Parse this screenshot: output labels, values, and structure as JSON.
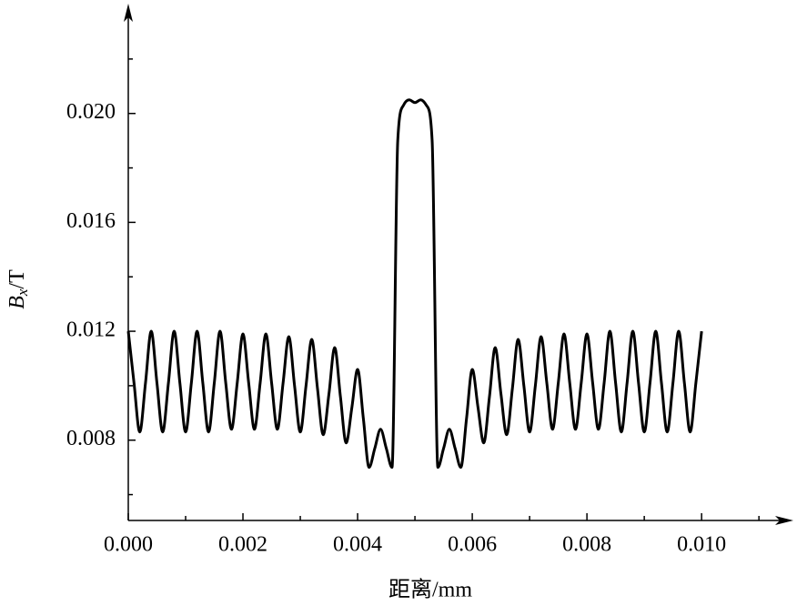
{
  "chart_data": {
    "type": "line",
    "x_label": "距离/mm",
    "y_label": {
      "symbol": "B",
      "subscript": "x",
      "unit": "/T"
    },
    "x": [
      0,
      0.0001,
      0.0002,
      0.0003,
      0.0004,
      0.0005,
      0.0006,
      0.0007,
      0.0008,
      0.0009,
      0.001,
      0.0011,
      0.0012,
      0.0013,
      0.0014,
      0.0015,
      0.0016,
      0.0017,
      0.0018,
      0.0019,
      0.002,
      0.0021,
      0.0022,
      0.0023,
      0.0024,
      0.0025,
      0.0026,
      0.0027,
      0.0028,
      0.0029,
      0.003,
      0.0031,
      0.0032,
      0.0033,
      0.0034,
      0.0035,
      0.0036,
      0.0037,
      0.0038,
      0.0039,
      0.004,
      0.0041,
      0.0042,
      0.0043,
      0.0044,
      0.0045,
      0.0046,
      0.0047,
      0.0048,
      0.0049,
      0.005,
      0.0051,
      0.0052,
      0.0053,
      0.0054,
      0.0055,
      0.0056,
      0.0057,
      0.0058,
      0.0059,
      0.006,
      0.0061,
      0.0062,
      0.0063,
      0.0064,
      0.0065,
      0.0066,
      0.0067,
      0.0068,
      0.0069,
      0.007,
      0.0071,
      0.0072,
      0.0073,
      0.0074,
      0.0075,
      0.0076,
      0.0077,
      0.0078,
      0.0079,
      0.008,
      0.0081,
      0.0082,
      0.0083,
      0.0084,
      0.0085,
      0.0086,
      0.0087,
      0.0088,
      0.0089,
      0.009,
      0.0091,
      0.0092,
      0.0093,
      0.0094,
      0.0095,
      0.0096,
      0.0097,
      0.0098,
      0.0099,
      0.01
    ],
    "series": [
      {
        "color": "#000000",
        "values": [
          0.012,
          0.0101,
          0.0083,
          0.0101,
          0.012,
          0.0101,
          0.0083,
          0.0101,
          0.012,
          0.0101,
          0.0083,
          0.0101,
          0.012,
          0.0101,
          0.0083,
          0.0101,
          0.012,
          0.0101,
          0.0084,
          0.0101,
          0.0119,
          0.0101,
          0.0084,
          0.0101,
          0.0119,
          0.0101,
          0.0084,
          0.0101,
          0.0118,
          0.01,
          0.0083,
          0.01,
          0.0117,
          0.0099,
          0.0082,
          0.0097,
          0.0114,
          0.0096,
          0.0079,
          0.0092,
          0.0106,
          0.0088,
          0.007,
          0.0077,
          0.0084,
          0.0077,
          0.007,
          0.019,
          0.0203,
          0.0205,
          0.0204,
          0.0205,
          0.0203,
          0.019,
          0.007,
          0.0077,
          0.0084,
          0.0077,
          0.007,
          0.0088,
          0.0106,
          0.0092,
          0.0079,
          0.0096,
          0.0114,
          0.0097,
          0.0082,
          0.0099,
          0.0117,
          0.01,
          0.0083,
          0.01,
          0.0118,
          0.0101,
          0.0084,
          0.0101,
          0.0119,
          0.0101,
          0.0084,
          0.0101,
          0.0119,
          0.0101,
          0.0084,
          0.0101,
          0.012,
          0.0101,
          0.0083,
          0.0101,
          0.012,
          0.0101,
          0.0083,
          0.0101,
          0.012,
          0.0101,
          0.0083,
          0.0101,
          0.012,
          0.0101,
          0.0083,
          0.0101,
          0.012
        ]
      }
    ],
    "xlim": [
      0,
      0.01141
    ],
    "ylim": [
      0.00505,
      0.0237
    ],
    "xticks": [
      {
        "value": 0,
        "label": "0.000"
      },
      0.002,
      0.004,
      0.006,
      0.008,
      {
        "value": 0.01,
        "label": "0.010"
      }
    ],
    "yticks": [
      0.008,
      0.012,
      0.016,
      {
        "value": 0.02,
        "label": "0.020"
      }
    ],
    "xminorticks": [
      0.001,
      0.003,
      0.005,
      0.007,
      0.009,
      0.011
    ],
    "yminorticks": [
      0.006,
      0.01,
      0.014,
      0.018,
      0.022
    ],
    "grid": false
  }
}
